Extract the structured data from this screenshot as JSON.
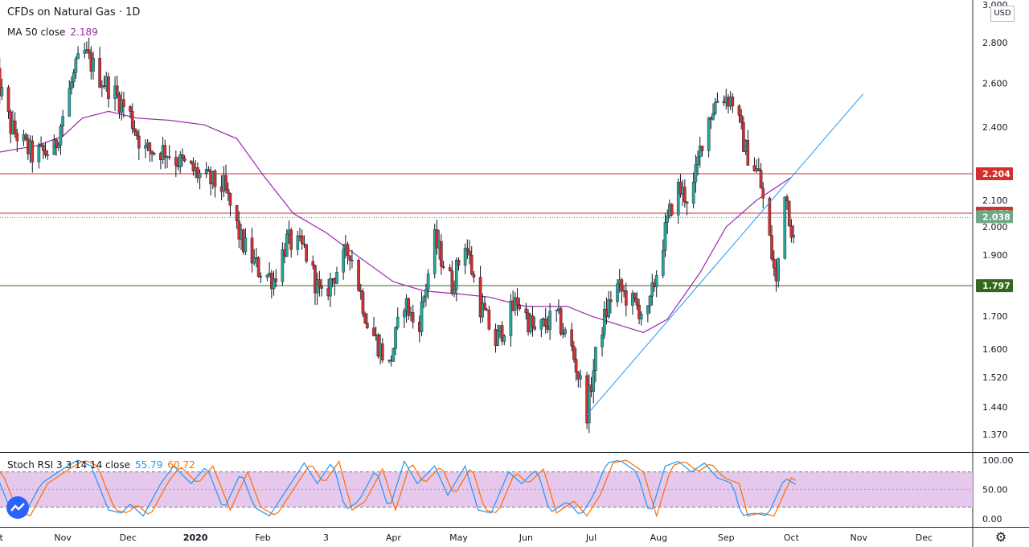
{
  "header": {
    "symbol": "CFDs on Natural Gas · 1D",
    "ma_label": "MA 50 close",
    "ma_value": "2.189",
    "stoch_label": "Stoch RSI 3 3 14 14 close",
    "stoch_k": "55.79",
    "stoch_d": "60.72",
    "currency": "USD"
  },
  "colors": {
    "up": "#26a69a",
    "down": "#ef5350",
    "candle_up_body": "#26a69a",
    "candle_down_body": "#d32f2f",
    "ma": "#9c27b0",
    "trendline": "#2196f3",
    "res1": "#d32f2f",
    "res2": "#d32f2f",
    "support": "#33691e",
    "price_tag": "#6fa887",
    "stoch_k": "#2196f3",
    "stoch_d": "#ff6d00",
    "stoch_band": "#e1bee7"
  },
  "chart_data": [
    {
      "type": "candlestick",
      "title": "CFDs on Natural Gas · 1D",
      "y_scale": "log",
      "ylim": [
        1.32,
        3.0
      ],
      "y_ticks": [
        "1.370",
        "1.440",
        "1.520",
        "1.600",
        "1.700",
        "1.800",
        "1.900",
        "2.000",
        "2.100",
        "2.204",
        "2.400",
        "2.600",
        "2.800",
        "3.000"
      ],
      "x_ticks": [
        "Oct",
        "Nov",
        "Dec",
        "2020",
        "Feb",
        "3",
        "Apr",
        "May",
        "Jun",
        "Jul",
        "Aug",
        "Sep",
        "Oct",
        "Nov",
        "Dec"
      ],
      "x_bold": [
        "2020"
      ],
      "horizontal_levels": [
        {
          "name": "resistance-high",
          "value": 2.204,
          "label": "2.204"
        },
        {
          "name": "resistance-low",
          "value": 2.051,
          "label": "2.051"
        },
        {
          "name": "support",
          "value": 1.797,
          "label": "1.797"
        }
      ],
      "last_price": {
        "value": 2.038,
        "label": "2.038"
      },
      "trendline": {
        "start": [
          "2020-06-29",
          1.42
        ],
        "end": [
          "2020-11-03",
          2.55
        ]
      },
      "ma50": [
        [
          "2019-10-01",
          2.29
        ],
        [
          "2019-10-20",
          2.32
        ],
        [
          "2019-11-01",
          2.36
        ],
        [
          "2019-11-10",
          2.44
        ],
        [
          "2019-11-22",
          2.47
        ],
        [
          "2019-12-05",
          2.44
        ],
        [
          "2019-12-20",
          2.43
        ],
        [
          "2020-01-05",
          2.41
        ],
        [
          "2020-01-20",
          2.35
        ],
        [
          "2020-02-01",
          2.2
        ],
        [
          "2020-02-15",
          2.05
        ],
        [
          "2020-03-01",
          1.98
        ],
        [
          "2020-03-15",
          1.9
        ],
        [
          "2020-04-01",
          1.81
        ],
        [
          "2020-04-15",
          1.78
        ],
        [
          "2020-05-01",
          1.77
        ],
        [
          "2020-05-15",
          1.76
        ],
        [
          "2020-06-01",
          1.73
        ],
        [
          "2020-06-20",
          1.73
        ],
        [
          "2020-07-01",
          1.7
        ],
        [
          "2020-07-15",
          1.67
        ],
        [
          "2020-07-25",
          1.65
        ],
        [
          "2020-08-05",
          1.69
        ],
        [
          "2020-08-20",
          1.84
        ],
        [
          "2020-09-01",
          2.0
        ],
        [
          "2020-09-15",
          2.1
        ],
        [
          "2020-10-01",
          2.19
        ]
      ],
      "ohlc_anchors": [
        [
          "2019-10-01",
          2.65
        ],
        [
          "2019-10-08",
          2.4
        ],
        [
          "2019-10-18",
          2.28
        ],
        [
          "2019-10-28",
          2.3
        ],
        [
          "2019-11-05",
          2.6
        ],
        [
          "2019-11-10",
          2.76
        ],
        [
          "2019-11-18",
          2.63
        ],
        [
          "2019-11-25",
          2.55
        ],
        [
          "2019-12-02",
          2.45
        ],
        [
          "2019-12-08",
          2.3
        ],
        [
          "2019-12-18",
          2.3
        ],
        [
          "2019-12-25",
          2.25
        ],
        [
          "2020-01-06",
          2.18
        ],
        [
          "2020-01-14",
          2.15
        ],
        [
          "2020-01-22",
          1.95
        ],
        [
          "2020-01-30",
          1.85
        ],
        [
          "2020-02-06",
          1.82
        ],
        [
          "2020-02-12",
          1.95
        ],
        [
          "2020-02-20",
          1.92
        ],
        [
          "2020-02-28",
          1.75
        ],
        [
          "2020-03-06",
          1.85
        ],
        [
          "2020-03-12",
          1.92
        ],
        [
          "2020-03-20",
          1.68
        ],
        [
          "2020-03-30",
          1.55
        ],
        [
          "2020-04-06",
          1.75
        ],
        [
          "2020-04-12",
          1.65
        ],
        [
          "2020-04-20",
          1.95
        ],
        [
          "2020-04-28",
          1.8
        ],
        [
          "2020-05-04",
          1.95
        ],
        [
          "2020-05-10",
          1.75
        ],
        [
          "2020-05-18",
          1.62
        ],
        [
          "2020-05-28",
          1.75
        ],
        [
          "2020-06-05",
          1.65
        ],
        [
          "2020-06-15",
          1.7
        ],
        [
          "2020-06-22",
          1.6
        ],
        [
          "2020-06-29",
          1.43
        ],
        [
          "2020-07-05",
          1.65
        ],
        [
          "2020-07-12",
          1.8
        ],
        [
          "2020-07-20",
          1.74
        ],
        [
          "2020-07-27",
          1.7
        ],
        [
          "2020-08-03",
          1.95
        ],
        [
          "2020-08-09",
          2.15
        ],
        [
          "2020-08-16",
          2.1
        ],
        [
          "2020-08-22",
          2.4
        ],
        [
          "2020-08-29",
          2.55
        ],
        [
          "2020-09-04",
          2.52
        ],
        [
          "2020-09-10",
          2.3
        ],
        [
          "2020-09-16",
          2.2
        ],
        [
          "2020-09-20",
          2.0
        ],
        [
          "2020-09-24",
          1.8
        ],
        [
          "2020-09-28",
          2.15
        ],
        [
          "2020-10-02",
          1.95
        ],
        [
          "2020-10-04",
          2.038
        ]
      ]
    },
    {
      "type": "line",
      "title": "Stoch RSI 3 3 14 14 close",
      "ylim": [
        0,
        100
      ],
      "y_ticks": [
        "100.00",
        "50.00",
        "0.00"
      ],
      "band": [
        20,
        80
      ],
      "series": [
        {
          "name": "K",
          "last": 55.79
        },
        {
          "name": "D",
          "last": 60.72
        }
      ],
      "k_anchors": [
        [
          "2019-10-01",
          80
        ],
        [
          "2019-10-08",
          15
        ],
        [
          "2019-10-14",
          5
        ],
        [
          "2019-10-22",
          60
        ],
        [
          "2019-11-01",
          85
        ],
        [
          "2019-11-08",
          100
        ],
        [
          "2019-11-14",
          90
        ],
        [
          "2019-11-22",
          15
        ],
        [
          "2019-11-28",
          10
        ],
        [
          "2019-12-02",
          25
        ],
        [
          "2019-12-08",
          5
        ],
        [
          "2019-12-16",
          60
        ],
        [
          "2019-12-22",
          90
        ],
        [
          "2019-12-30",
          60
        ],
        [
          "2020-01-06",
          90
        ],
        [
          "2020-01-14",
          15
        ],
        [
          "2020-01-22",
          80
        ],
        [
          "2020-01-28",
          20
        ],
        [
          "2020-02-04",
          5
        ],
        [
          "2020-02-12",
          50
        ],
        [
          "2020-02-20",
          95
        ],
        [
          "2020-02-26",
          60
        ],
        [
          "2020-03-04",
          98
        ],
        [
          "2020-03-10",
          15
        ],
        [
          "2020-03-16",
          30
        ],
        [
          "2020-03-24",
          85
        ],
        [
          "2020-03-30",
          15
        ],
        [
          "2020-04-06",
          98
        ],
        [
          "2020-04-12",
          60
        ],
        [
          "2020-04-20",
          90
        ],
        [
          "2020-04-26",
          40
        ],
        [
          "2020-05-04",
          90
        ],
        [
          "2020-05-10",
          15
        ],
        [
          "2020-05-16",
          10
        ],
        [
          "2020-05-24",
          80
        ],
        [
          "2020-05-30",
          60
        ],
        [
          "2020-06-06",
          85
        ],
        [
          "2020-06-12",
          10
        ],
        [
          "2020-06-20",
          30
        ],
        [
          "2020-06-26",
          5
        ],
        [
          "2020-07-02",
          40
        ],
        [
          "2020-07-08",
          95
        ],
        [
          "2020-07-14",
          100
        ],
        [
          "2020-07-22",
          80
        ],
        [
          "2020-07-28",
          5
        ],
        [
          "2020-08-04",
          90
        ],
        [
          "2020-08-10",
          98
        ],
        [
          "2020-08-16",
          80
        ],
        [
          "2020-08-22",
          95
        ],
        [
          "2020-08-28",
          70
        ],
        [
          "2020-09-04",
          60
        ],
        [
          "2020-09-08",
          5
        ],
        [
          "2020-09-14",
          10
        ],
        [
          "2020-09-20",
          5
        ],
        [
          "2020-09-28",
          70
        ],
        [
          "2020-10-04",
          56
        ]
      ]
    }
  ]
}
